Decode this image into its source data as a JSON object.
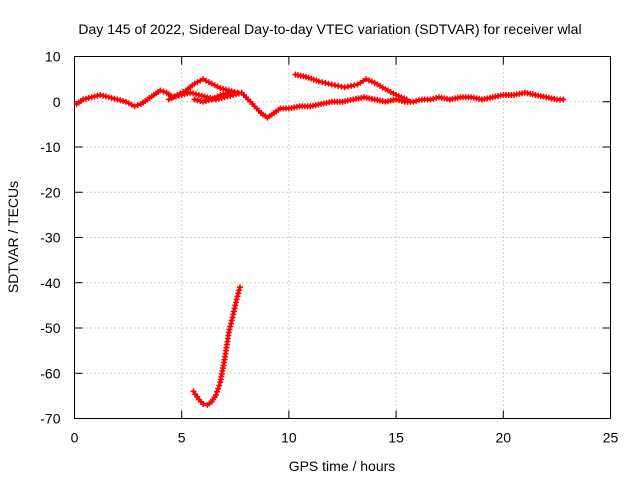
{
  "chart_data": {
    "type": "scatter",
    "title": "Day 145 of 2022, Sidereal Day-to-day VTEC variation (SDTVAR) for receiver wlal",
    "xlabel": "GPS time / hours",
    "ylabel": "SDTVAR / TECUs",
    "xlim": [
      0,
      25
    ],
    "ylim": [
      -70,
      10
    ],
    "xticks": [
      0,
      5,
      10,
      15,
      20,
      25
    ],
    "yticks": [
      10,
      0,
      -10,
      -20,
      -30,
      -40,
      -50,
      -60,
      -70
    ],
    "grid": true,
    "marker": "+",
    "color": "#ff0000",
    "series": [
      {
        "name": "main trace",
        "x": [
          0.1,
          0.4,
          0.8,
          1.2,
          1.6,
          2.0,
          2.4,
          2.8,
          3.1,
          3.4,
          3.7,
          4.0,
          4.3,
          4.6,
          5.0,
          5.4,
          5.8,
          6.2,
          6.6,
          7.0,
          7.4,
          7.8,
          8.1,
          8.4,
          8.7,
          9.0,
          9.3,
          9.6,
          10.0,
          10.5,
          11.0,
          11.5,
          12.0,
          12.5,
          13.0,
          13.5,
          14.0,
          14.5,
          15.0,
          15.4,
          15.8,
          16.2,
          16.6,
          17.0,
          17.5,
          18.0,
          18.5,
          19.0,
          19.5,
          20.0,
          20.5,
          21.0,
          21.5,
          22.0,
          22.5,
          22.8
        ],
        "y": [
          -0.5,
          0.5,
          1.0,
          1.5,
          1.0,
          0.5,
          0.0,
          -1.0,
          -0.5,
          0.5,
          1.5,
          2.5,
          2.0,
          1.0,
          1.5,
          2.0,
          1.5,
          1.0,
          0.5,
          1.0,
          1.5,
          2.0,
          0.5,
          -1.0,
          -2.5,
          -3.5,
          -2.5,
          -1.5,
          -1.5,
          -1.0,
          -1.0,
          -0.5,
          0.0,
          0.0,
          0.5,
          1.0,
          0.5,
          0.0,
          0.5,
          0.0,
          0.0,
          0.5,
          0.5,
          1.0,
          0.5,
          1.0,
          1.0,
          0.5,
          1.0,
          1.5,
          1.5,
          2.0,
          1.5,
          1.0,
          0.5,
          0.5
        ]
      },
      {
        "name": "upper branch near 6 h",
        "x": [
          4.4,
          4.8,
          5.2,
          5.6,
          6.0,
          6.4,
          6.8,
          7.2,
          7.6
        ],
        "y": [
          0.5,
          1.5,
          2.5,
          4.0,
          5.0,
          4.0,
          3.0,
          2.5,
          2.0
        ]
      },
      {
        "name": "lower branch near 6 h",
        "x": [
          5.6,
          6.0,
          6.4,
          6.8,
          7.2
        ],
        "y": [
          0.5,
          0.0,
          0.5,
          1.5,
          2.0
        ]
      },
      {
        "name": "offset segment 10-16 h",
        "x": [
          10.3,
          10.8,
          11.4,
          12.0,
          12.6,
          13.2,
          13.6,
          14.0,
          14.5,
          15.0,
          15.5
        ],
        "y": [
          6.0,
          5.5,
          4.5,
          3.8,
          3.2,
          3.8,
          5.0,
          4.2,
          2.8,
          1.5,
          0.5
        ]
      },
      {
        "name": "dip segment 5.5-7.7 h",
        "x": [
          5.55,
          5.8,
          6.0,
          6.2,
          6.4,
          6.6,
          6.8,
          7.0,
          7.2,
          7.4,
          7.6,
          7.72
        ],
        "y": [
          -64.0,
          -65.8,
          -66.8,
          -67.0,
          -66.3,
          -64.8,
          -62.0,
          -57.0,
          -51.0,
          -47.0,
          -43.0,
          -41.0
        ]
      }
    ]
  }
}
